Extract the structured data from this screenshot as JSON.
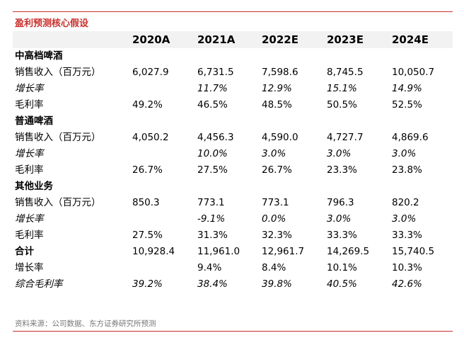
{
  "title": "盈利预测核心假设",
  "columns": [
    "2020A",
    "2021A",
    "2022E",
    "2023E",
    "2024E"
  ],
  "rows": [
    {
      "label": "中高档啤酒",
      "values": [
        "",
        "",
        "",
        "",
        ""
      ]
    },
    {
      "label": "销售收入（百万元）",
      "values": [
        "6,027.9",
        "6,731.5",
        "7,598.6",
        "8,745.5",
        "10,050.7"
      ]
    },
    {
      "label": "增长率",
      "values": [
        "",
        "11.7%",
        "12.9%",
        "15.1%",
        "14.9%"
      ]
    },
    {
      "label": "毛利率",
      "values": [
        "49.2%",
        "46.5%",
        "48.5%",
        "50.5%",
        "52.5%"
      ]
    },
    {
      "label": "普通啤酒",
      "values": [
        "",
        "",
        "",
        "",
        ""
      ]
    },
    {
      "label": "销售收入（百万元）",
      "values": [
        "4,050.2",
        "4,456.3",
        "4,590.0",
        "4,727.7",
        "4,869.6"
      ]
    },
    {
      "label": "增长率",
      "values": [
        "",
        "10.0%",
        "3.0%",
        "3.0%",
        "3.0%"
      ]
    },
    {
      "label": "毛利率",
      "values": [
        "26.7%",
        "27.5%",
        "26.7%",
        "23.3%",
        "23.8%"
      ]
    },
    {
      "label": "其他业务",
      "values": [
        "",
        "",
        "",
        "",
        ""
      ]
    },
    {
      "label": "销售收入（百万元）",
      "values": [
        "850.3",
        "773.1",
        "773.1",
        "796.3",
        "820.2"
      ]
    },
    {
      "label": "增长率",
      "values": [
        "",
        "-9.1%",
        "0.0%",
        "3.0%",
        "3.0%"
      ]
    },
    {
      "label": "毛利率",
      "values": [
        "27.5%",
        "31.3%",
        "32.3%",
        "33.3%",
        "33.3%"
      ]
    },
    {
      "label": "合计",
      "values": [
        "10,928.4",
        "11,961.0",
        "12,961.7",
        "14,269.5",
        "15,740.5"
      ]
    },
    {
      "label": "增长率",
      "values": [
        "",
        "9.4%",
        "8.4%",
        "10.1%",
        "10.3%"
      ]
    },
    {
      "label": "综合毛利率",
      "values": [
        "39.2%",
        "38.4%",
        "39.8%",
        "40.5%",
        "42.6%"
      ]
    }
  ],
  "source": "资料来源：公司数据、东方证券研究所预测",
  "colors": {
    "accent": "#c9302c",
    "header_bg": "#f2f2f2"
  }
}
